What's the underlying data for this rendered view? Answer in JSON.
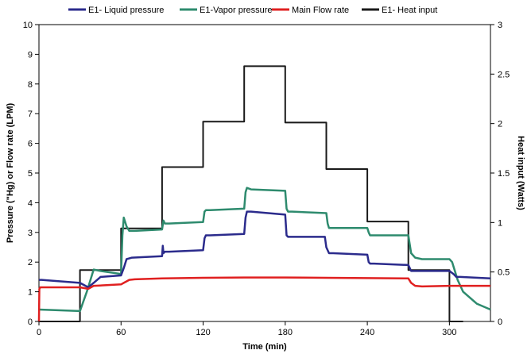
{
  "chart_data": {
    "type": "line",
    "title": "",
    "xlabel": "Time (min)",
    "ylabel": "Pressure (\"Hg) or Flow rate (LPM)",
    "y2label": "Heat input (Watts)",
    "xlim": [
      0,
      330
    ],
    "ylim": [
      0,
      10
    ],
    "y2lim": [
      0,
      3
    ],
    "xticks": [
      0,
      60,
      120,
      180,
      240,
      300
    ],
    "yticks": [
      0,
      1,
      2,
      3,
      4,
      5,
      6,
      7,
      8,
      9,
      10
    ],
    "y2ticks": [
      0,
      0.5,
      1,
      1.5,
      2,
      2.5,
      3
    ],
    "legend_position": "top",
    "grid": false,
    "series": [
      {
        "name": "E1- Liquid pressure",
        "color": "#2b2b8c",
        "axis": "left",
        "x": [
          0,
          2,
          30,
          36,
          40,
          45,
          60,
          62,
          64,
          68,
          90,
          90.5,
          91,
          92,
          95,
          120,
          121,
          122,
          125,
          150,
          151,
          152,
          155,
          180,
          181,
          182,
          185,
          209,
          210,
          212,
          215,
          240,
          241,
          242,
          245,
          270,
          272,
          274,
          278,
          300,
          303,
          305,
          308,
          330
        ],
        "y": [
          1.4,
          1.4,
          1.3,
          1.15,
          1.3,
          1.5,
          1.55,
          1.8,
          2.1,
          2.15,
          2.2,
          2.55,
          2.3,
          2.35,
          2.35,
          2.4,
          2.8,
          2.9,
          2.9,
          2.95,
          3.5,
          3.7,
          3.7,
          3.6,
          2.9,
          2.85,
          2.85,
          2.85,
          2.5,
          2.3,
          2.3,
          2.25,
          2.0,
          1.95,
          1.95,
          1.9,
          1.7,
          1.7,
          1.7,
          1.7,
          1.6,
          1.5,
          1.5,
          1.45
        ]
      },
      {
        "name": "E1-Vapor pressure",
        "color": "#2e8b6e",
        "axis": "left",
        "x": [
          0,
          30,
          35,
          40,
          45,
          60,
          61,
          62,
          64,
          66,
          70,
          90,
          91,
          92,
          95,
          120,
          121,
          122,
          125,
          150,
          151,
          152,
          155,
          180,
          181,
          182,
          185,
          210,
          211,
          212,
          215,
          240,
          241,
          242,
          245,
          270,
          272,
          275,
          280,
          300,
          302,
          306,
          310,
          320,
          330
        ],
        "y": [
          0.4,
          0.35,
          1.0,
          1.75,
          1.7,
          1.6,
          2.9,
          3.5,
          3.2,
          3.05,
          3.05,
          3.1,
          3.4,
          3.3,
          3.3,
          3.35,
          3.7,
          3.75,
          3.75,
          3.8,
          4.35,
          4.5,
          4.45,
          4.4,
          3.8,
          3.7,
          3.7,
          3.65,
          3.3,
          3.15,
          3.15,
          3.15,
          3.0,
          2.9,
          2.9,
          2.9,
          2.3,
          2.15,
          2.1,
          2.1,
          2.0,
          1.4,
          1.0,
          0.6,
          0.4
        ]
      },
      {
        "name": "Main Flow rate",
        "color": "#e02020",
        "axis": "left",
        "x": [
          0,
          0.3,
          1,
          30,
          36,
          40,
          60,
          62,
          64,
          66,
          70,
          90,
          120,
          150,
          180,
          210,
          240,
          270,
          272,
          275,
          280,
          300,
          330
        ],
        "y": [
          0,
          1.1,
          1.15,
          1.15,
          1.1,
          1.2,
          1.25,
          1.3,
          1.35,
          1.4,
          1.42,
          1.45,
          1.47,
          1.48,
          1.48,
          1.47,
          1.46,
          1.45,
          1.3,
          1.2,
          1.18,
          1.2,
          1.2
        ]
      },
      {
        "name": "E1- Heat input",
        "color": "#1a1a1a",
        "axis": "right",
        "step": true,
        "x": [
          0,
          30,
          30,
          60,
          60,
          90,
          90,
          120,
          120,
          150,
          150,
          180,
          180,
          210,
          210,
          240,
          240,
          270,
          270,
          300,
          300,
          310
        ],
        "y": [
          0,
          0,
          0.52,
          0.52,
          0.94,
          0.94,
          1.56,
          1.56,
          2.02,
          2.02,
          2.58,
          2.58,
          2.01,
          2.01,
          1.54,
          1.54,
          1.01,
          1.01,
          0.52,
          0.52,
          0,
          0
        ]
      }
    ]
  }
}
